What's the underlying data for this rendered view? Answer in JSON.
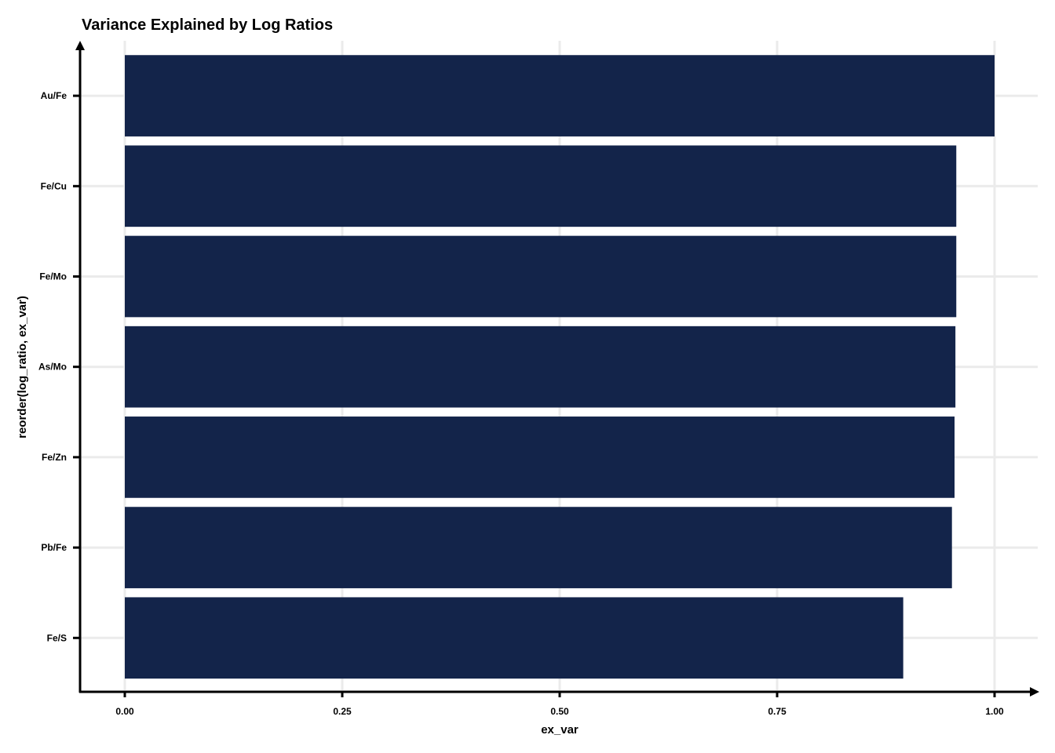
{
  "chart_data": {
    "type": "bar",
    "orientation": "horizontal",
    "title": "Variance Explained by Log Ratios",
    "xlabel": "ex_var",
    "ylabel": "reorder(log_ratio, ex_var)",
    "categories": [
      "Au/Fe",
      "Fe/Cu",
      "Fe/Mo",
      "As/Mo",
      "Fe/Zn",
      "Pb/Fe",
      "Fe/S"
    ],
    "values": [
      1.0,
      0.956,
      0.956,
      0.955,
      0.954,
      0.951,
      0.895
    ],
    "xlim": [
      0,
      1.0
    ],
    "x_ticks": [
      "0.00",
      "0.25",
      "0.50",
      "0.75",
      "1.00"
    ],
    "x_tick_values": [
      0,
      0.25,
      0.5,
      0.75,
      1.0
    ],
    "bar_color": "#13244a",
    "grid": true,
    "legend": "none"
  }
}
